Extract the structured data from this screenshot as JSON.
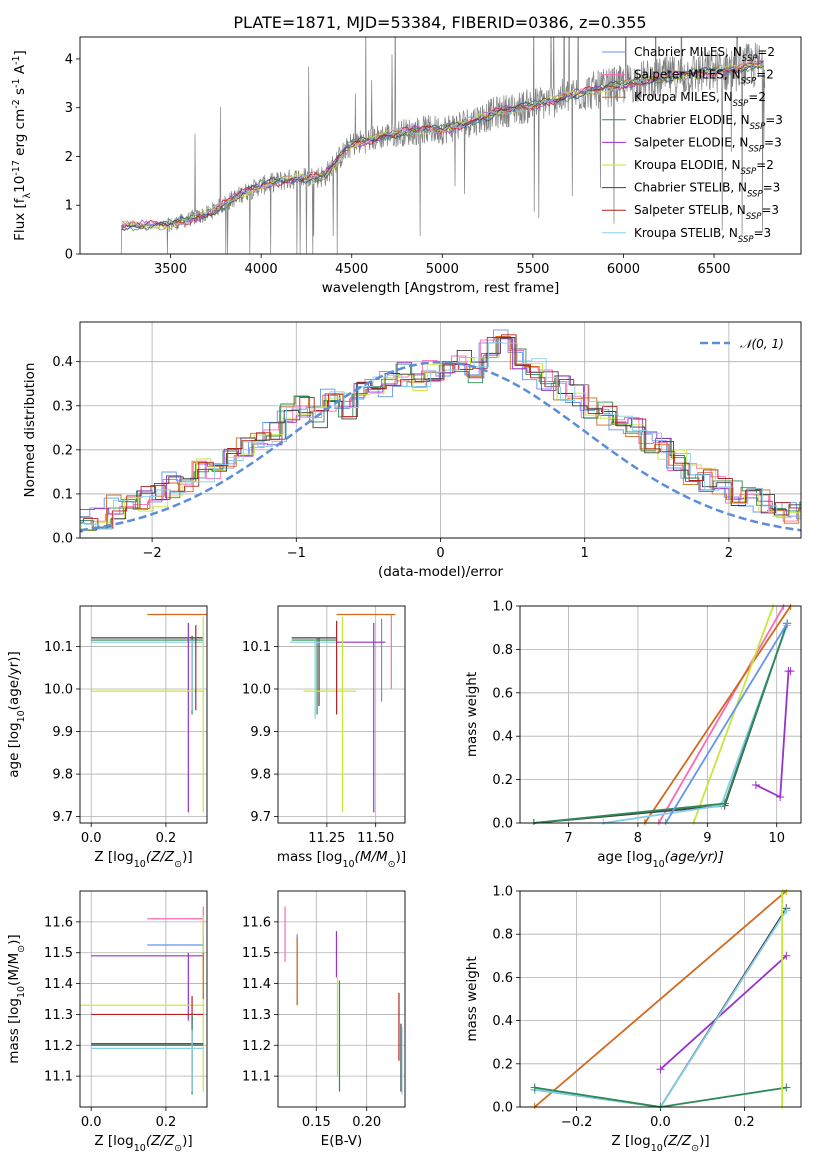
{
  "title": "PLATE=1871, MJD=53384, FIBERID=0386, z=0.355",
  "colors": {
    "chabrier_miles": "#6495ED",
    "salpeter_miles": "#FF69B4",
    "kroupa_miles": "#D2691E",
    "chabrier_elodie": "#2E8B57",
    "salpeter_elodie": "#9932CC",
    "kroupa_elodie": "#C8E639",
    "chabrier_stelib": "#404040",
    "salpeter_stelib": "#B22222",
    "kroupa_stelib": "#87CEEB",
    "data": "#808080",
    "gauss": "#5B8ED8",
    "grid": "#b0b0b0"
  },
  "legend": [
    {
      "label": "Chabrier MILES, N",
      "sub": "SSP",
      "suffix": "=2",
      "color_key": "chabrier_miles"
    },
    {
      "label": "Salpeter MILES, N",
      "sub": "SSP",
      "suffix": "=2",
      "color_key": "salpeter_miles"
    },
    {
      "label": "Kroupa MILES, N",
      "sub": "SSP",
      "suffix": "=2",
      "color_key": "kroupa_miles"
    },
    {
      "label": "Chabrier ELODIE, N",
      "sub": "SSP",
      "suffix": "=3",
      "color_key": "chabrier_elodie"
    },
    {
      "label": "Salpeter ELODIE, N",
      "sub": "SSP",
      "suffix": "=3",
      "color_key": "salpeter_elodie"
    },
    {
      "label": "Kroupa ELODIE, N",
      "sub": "SSP",
      "suffix": "=2",
      "color_key": "kroupa_elodie"
    },
    {
      "label": "Chabrier STELIB, N",
      "sub": "SSP",
      "suffix": "=3",
      "color_key": "chabrier_stelib"
    },
    {
      "label": "Salpeter STELIB, N",
      "sub": "SSP",
      "suffix": "=3",
      "color_key": "salpeter_stelib"
    },
    {
      "label": "Kroupa STELIB, N",
      "sub": "SSP",
      "suffix": "=3",
      "color_key": "kroupa_stelib"
    }
  ],
  "chart_data": [
    {
      "id": "spectrum",
      "type": "line",
      "xlabel": "wavelength [Angstrom, rest frame]",
      "ylabel_parts": [
        "Flux [f",
        "λ",
        "10",
        "-17",
        " erg cm",
        "-2",
        " s",
        "-1",
        " A",
        "-1",
        "]"
      ],
      "xlim": [
        3000,
        6980
      ],
      "ylim": [
        0,
        4.45
      ],
      "xticks": [
        3500,
        4000,
        4500,
        5000,
        5500,
        6000,
        6500
      ],
      "yticks": [
        0,
        1,
        2,
        3,
        4
      ],
      "grid": false,
      "legend_placement": "upper-right",
      "continuum": {
        "x": [
          3200,
          3230,
          3500,
          3700,
          3900,
          4000,
          4100,
          4200,
          4300,
          4350,
          4450,
          4500,
          4700,
          4900,
          5000,
          5100,
          5300,
          5500,
          5700,
          5900,
          6100,
          6300,
          6500,
          6700,
          6780
        ],
        "y": [
          0.0,
          0.58,
          0.6,
          0.82,
          1.25,
          1.4,
          1.5,
          1.55,
          1.58,
          1.6,
          2.05,
          2.25,
          2.45,
          2.55,
          2.55,
          2.65,
          2.9,
          3.05,
          3.25,
          3.4,
          3.55,
          3.65,
          3.75,
          3.85,
          3.9
        ]
      }
    },
    {
      "id": "residuals",
      "type": "histogram",
      "xlabel": "(data-model)/error",
      "ylabel": "Normed distribution",
      "xlim": [
        -2.5,
        2.5
      ],
      "ylim": [
        0,
        0.49
      ],
      "xticks": [
        -2,
        -1,
        0,
        1,
        2
      ],
      "yticks": [
        0.0,
        0.1,
        0.2,
        0.3,
        0.4
      ],
      "grid": true,
      "legend": "𝒩(0, 1)",
      "legend_placement": "upper-right",
      "bin_width": 0.1,
      "base_values": [
        0.02,
        0.02,
        0.025,
        0.03,
        0.04,
        0.04,
        0.05,
        0.07,
        0.08,
        0.09,
        0.1,
        0.12,
        0.13,
        0.15,
        0.16,
        0.18,
        0.2,
        0.21,
        0.24,
        0.28,
        0.3,
        0.28,
        0.31,
        0.3,
        0.33,
        0.34,
        0.35,
        0.37,
        0.36,
        0.38,
        0.39,
        0.4,
        0.38,
        0.43,
        0.45,
        0.41,
        0.38,
        0.36,
        0.34,
        0.32,
        0.3,
        0.28,
        0.26,
        0.25,
        0.22,
        0.2,
        0.18,
        0.15,
        0.13,
        0.11,
        0.1,
        0.09,
        0.08,
        0.07,
        0.06,
        0.06,
        0.05,
        0.04,
        0.04,
        0.03
      ]
    },
    {
      "id": "age_vs_Z",
      "type": "errorbar",
      "xlabel_parts": [
        "Z [log",
        "10",
        "(Z/Z",
        "⊙",
        ")]"
      ],
      "ylabel_parts": [
        "age  [log",
        "10",
        "(age/yr)]"
      ],
      "xlim": [
        -0.03,
        0.31
      ],
      "ylim": [
        9.685,
        10.195
      ],
      "xticks": [
        0.0,
        0.2
      ],
      "yticks": [
        9.7,
        9.8,
        9.9,
        10.0,
        10.1
      ],
      "grid": true,
      "points": [
        {
          "c": "kroupa_miles",
          "x": 0.29,
          "xlo": 0.15,
          "xhi": 0.31,
          "y": 10.175,
          "ylo": 10.175,
          "yhi": 10.175
        },
        {
          "c": "chabrier_stelib",
          "x": 0.27,
          "xlo": 0.0,
          "xhi": 0.3,
          "y": 10.12,
          "ylo": 9.95,
          "yhi": 10.125
        },
        {
          "c": "chabrier_elodie",
          "x": 0.27,
          "xlo": 0.0,
          "xhi": 0.3,
          "y": 10.115,
          "ylo": 9.94,
          "yhi": 10.12
        },
        {
          "c": "kroupa_stelib",
          "x": 0.27,
          "xlo": 0.0,
          "xhi": 0.3,
          "y": 10.11,
          "ylo": 9.95,
          "yhi": 10.115
        },
        {
          "c": "salpeter_elodie",
          "x": 0.26,
          "xlo": 0.26,
          "xhi": 0.26,
          "y": 10.1,
          "ylo": 9.71,
          "yhi": 10.155
        },
        {
          "c": "kroupa_elodie",
          "x": 0.3,
          "xlo": 0.0,
          "xhi": 0.3,
          "y": 9.995,
          "ylo": 9.71,
          "yhi": 10.17
        },
        {
          "c": "salpeter_stelib",
          "x": 0.28,
          "xlo": 0.28,
          "xhi": 0.28,
          "y": 10.05,
          "ylo": 9.95,
          "yhi": 10.15
        }
      ]
    },
    {
      "id": "age_vs_mass",
      "type": "errorbar",
      "xlabel_parts": [
        "mass [log",
        "10",
        "(M/M",
        "⊙",
        ")]"
      ],
      "xlim": [
        11.0,
        11.65
      ],
      "ylim": [
        9.685,
        10.195
      ],
      "xticks": [
        11.25,
        11.5
      ],
      "yticks": [
        9.7,
        9.8,
        9.9,
        10.0,
        10.1
      ],
      "grid": true,
      "points": [
        {
          "c": "kroupa_miles",
          "x": 11.39,
          "xlo": 11.3,
          "xhi": 11.6,
          "y": 10.175,
          "ylo": 10.175,
          "yhi": 10.175
        },
        {
          "c": "salpeter_miles",
          "x": 11.58,
          "xlo": 11.58,
          "xhi": 11.58,
          "y": 10.1,
          "ylo": 10.0,
          "yhi": 10.175
        },
        {
          "c": "chabrier_miles",
          "x": 11.53,
          "xlo": 11.53,
          "xhi": 11.53,
          "y": 10.1,
          "ylo": 9.97,
          "yhi": 10.165
        },
        {
          "c": "chabrier_stelib",
          "x": 11.21,
          "xlo": 11.07,
          "xhi": 11.3,
          "y": 10.12,
          "ylo": 9.96,
          "yhi": 10.12
        },
        {
          "c": "chabrier_elodie",
          "x": 11.2,
          "xlo": 11.07,
          "xhi": 11.3,
          "y": 10.115,
          "ylo": 9.94,
          "yhi": 10.12
        },
        {
          "c": "kroupa_stelib",
          "x": 11.19,
          "xlo": 11.06,
          "xhi": 11.3,
          "y": 10.11,
          "ylo": 9.93,
          "yhi": 10.115
        },
        {
          "c": "salpeter_elodie",
          "x": 11.49,
          "xlo": 11.3,
          "xhi": 11.55,
          "y": 10.11,
          "ylo": 9.71,
          "yhi": 10.155
        },
        {
          "c": "kroupa_elodie",
          "x": 11.33,
          "xlo": 11.13,
          "xhi": 11.4,
          "y": 9.995,
          "ylo": 9.71,
          "yhi": 10.17
        },
        {
          "c": "salpeter_stelib",
          "x": 11.3,
          "xlo": 11.3,
          "xhi": 11.3,
          "y": 10.05,
          "ylo": 9.94,
          "yhi": 10.16
        }
      ]
    },
    {
      "id": "weight_vs_age",
      "type": "line",
      "xlabel_parts": [
        "age  [log",
        "10",
        "(age/yr)]"
      ],
      "ylabel": "mass weight",
      "xlim": [
        6.3,
        10.35
      ],
      "ylim": [
        0,
        1.0
      ],
      "xticks": [
        7,
        8,
        9,
        10
      ],
      "yticks": [
        0.0,
        0.2,
        0.4,
        0.6,
        0.8,
        1.0
      ],
      "grid": true,
      "series": [
        {
          "c": "salpeter_miles",
          "x": [
            8.3,
            10.1
          ],
          "y": [
            0.0,
            1.0
          ]
        },
        {
          "c": "kroupa_miles",
          "x": [
            8.1,
            10.2
          ],
          "y": [
            0.0,
            1.0
          ]
        },
        {
          "c": "kroupa_elodie",
          "x": [
            8.8,
            9.95
          ],
          "y": [
            0.0,
            1.0
          ]
        },
        {
          "c": "salpeter_elodie",
          "x": [
            9.7,
            10.05,
            10.17,
            10.2
          ],
          "y": [
            0.175,
            0.12,
            0.7,
            0.7
          ]
        },
        {
          "c": "chabrier_stelib",
          "x": [
            6.5,
            9.25,
            10.15
          ],
          "y": [
            0.0,
            0.08,
            0.92
          ]
        },
        {
          "c": "kroupa_stelib",
          "x": [
            7.5,
            9.2,
            10.15
          ],
          "y": [
            0.0,
            0.08,
            0.91
          ]
        },
        {
          "c": "chabrier_elodie",
          "x": [
            6.5,
            9.25,
            10.15
          ],
          "y": [
            0.0,
            0.09,
            0.92
          ]
        },
        {
          "c": "chabrier_miles",
          "x": [
            8.4,
            10.15
          ],
          "y": [
            0.0,
            0.92
          ]
        }
      ]
    },
    {
      "id": "mass_vs_Z",
      "type": "errorbar",
      "xlabel_parts": [
        "Z [log",
        "10",
        "(Z/Z",
        "⊙",
        ")]"
      ],
      "ylabel_parts": [
        "mass [log",
        "10",
        "(M/M",
        "⊙",
        ")]"
      ],
      "xlim": [
        -0.03,
        0.31
      ],
      "ylim": [
        11.0,
        11.7
      ],
      "xticks": [
        0.0,
        0.2
      ],
      "yticks": [
        11.1,
        11.2,
        11.3,
        11.4,
        11.5,
        11.6
      ],
      "grid": true,
      "points": [
        {
          "c": "salpeter_miles",
          "x": 0.3,
          "xlo": 0.15,
          "xhi": 0.3,
          "y": 11.61,
          "ylo": 11.47,
          "yhi": 11.65
        },
        {
          "c": "chabrier_miles",
          "x": 0.3,
          "xlo": 0.15,
          "xhi": 0.3,
          "y": 11.525,
          "ylo": 11.49,
          "yhi": 11.55
        },
        {
          "c": "salpeter_elodie",
          "x": 0.26,
          "xlo": 0.0,
          "xhi": 0.3,
          "y": 11.49,
          "ylo": 11.28,
          "yhi": 11.5
        },
        {
          "c": "kroupa_elodie",
          "x": 0.3,
          "xlo": -0.03,
          "xhi": 0.3,
          "y": 11.33,
          "ylo": 11.05,
          "yhi": 11.62
        },
        {
          "c": "salpeter_stelib",
          "x": 0.27,
          "xlo": 0.0,
          "xhi": 0.3,
          "y": 11.3,
          "ylo": 11.28,
          "yhi": 11.36
        },
        {
          "c": "chabrier_stelib",
          "x": 0.27,
          "xlo": 0.0,
          "xhi": 0.3,
          "y": 11.205,
          "ylo": 11.05,
          "yhi": 11.3
        },
        {
          "c": "chabrier_elodie",
          "x": 0.27,
          "xlo": 0.0,
          "xhi": 0.3,
          "y": 11.2,
          "ylo": 11.04,
          "yhi": 11.3
        },
        {
          "c": "kroupa_stelib",
          "x": 0.27,
          "xlo": 0.0,
          "xhi": 0.3,
          "y": 11.19,
          "ylo": 11.05,
          "yhi": 11.25
        },
        {
          "c": "kroupa_miles",
          "x": 0.3,
          "xlo": 0.3,
          "xhi": 0.3,
          "y": 11.4,
          "ylo": 11.35,
          "yhi": 11.5
        }
      ]
    },
    {
      "id": "mass_vs_ebv",
      "type": "errorbar",
      "xlabel": "E(B-V)",
      "xlim": [
        0.112,
        0.238
      ],
      "ylim": [
        11.0,
        11.7
      ],
      "xticks": [
        0.15,
        0.2
      ],
      "yticks": [
        11.1,
        11.2,
        11.3,
        11.4,
        11.5,
        11.6
      ],
      "grid": true,
      "points": [
        {
          "c": "salpeter_miles",
          "x": 0.119,
          "xlo": 0.119,
          "xhi": 0.119,
          "y": 11.55,
          "ylo": 11.47,
          "yhi": 11.65
        },
        {
          "c": "chabrier_miles",
          "x": 0.131,
          "xlo": 0.131,
          "xhi": 0.131,
          "y": 11.5,
          "ylo": 11.33,
          "yhi": 11.56
        },
        {
          "c": "kroupa_miles",
          "x": 0.131,
          "xlo": 0.131,
          "xhi": 0.131,
          "y": 11.45,
          "ylo": 11.33,
          "yhi": 11.55
        },
        {
          "c": "salpeter_elodie",
          "x": 0.17,
          "xlo": 0.17,
          "xhi": 0.17,
          "y": 11.49,
          "ylo": 11.42,
          "yhi": 11.57
        },
        {
          "c": "kroupa_elodie",
          "x": 0.171,
          "xlo": 0.171,
          "xhi": 0.171,
          "y": 11.3,
          "ylo": 11.1,
          "yhi": 11.42
        },
        {
          "c": "chabrier_elodie",
          "x": 0.173,
          "xlo": 0.173,
          "xhi": 0.173,
          "y": 11.2,
          "ylo": 11.05,
          "yhi": 11.41
        },
        {
          "c": "salpeter_stelib",
          "x": 0.232,
          "xlo": 0.232,
          "xhi": 0.232,
          "y": 11.3,
          "ylo": 11.15,
          "yhi": 11.37
        },
        {
          "c": "chabrier_stelib",
          "x": 0.234,
          "xlo": 0.234,
          "xhi": 0.234,
          "y": 11.2,
          "ylo": 11.05,
          "yhi": 11.27
        },
        {
          "c": "kroupa_stelib",
          "x": 0.235,
          "xlo": 0.235,
          "xhi": 0.235,
          "y": 11.19,
          "ylo": 11.04,
          "yhi": 11.26
        }
      ]
    },
    {
      "id": "weight_vs_Z",
      "type": "line",
      "xlabel_parts": [
        "Z [log",
        "10",
        "(Z/Z",
        "⊙",
        ")]"
      ],
      "ylabel": "mass weight",
      "xlim": [
        -0.335,
        0.335
      ],
      "ylim": [
        0,
        1.0
      ],
      "xticks": [
        -0.2,
        0.0,
        0.2
      ],
      "yticks": [
        0.0,
        0.2,
        0.4,
        0.6,
        0.8,
        1.0
      ],
      "grid": true,
      "series": [
        {
          "c": "kroupa_miles",
          "x": [
            -0.3,
            0.3
          ],
          "y": [
            0.0,
            1.0
          ]
        },
        {
          "c": "salpeter_elodie",
          "x": [
            0.0,
            0.3
          ],
          "y": [
            0.175,
            0.7
          ]
        },
        {
          "c": "chabrier_stelib",
          "x": [
            -0.3,
            0.0,
            0.3
          ],
          "y": [
            0.08,
            0.0,
            0.92
          ]
        },
        {
          "c": "kroupa_stelib",
          "x": [
            -0.3,
            0.0,
            0.3
          ],
          "y": [
            0.08,
            0.0,
            0.91
          ]
        },
        {
          "c": "chabrier_elodie",
          "x": [
            -0.3,
            0.0,
            0.3
          ],
          "y": [
            0.09,
            0.0,
            0.09
          ]
        },
        {
          "c": "kroupa_elodie",
          "x": [
            0.29,
            0.29,
            0.3
          ],
          "y": [
            0.0,
            1.0,
            1.0
          ]
        }
      ]
    }
  ]
}
